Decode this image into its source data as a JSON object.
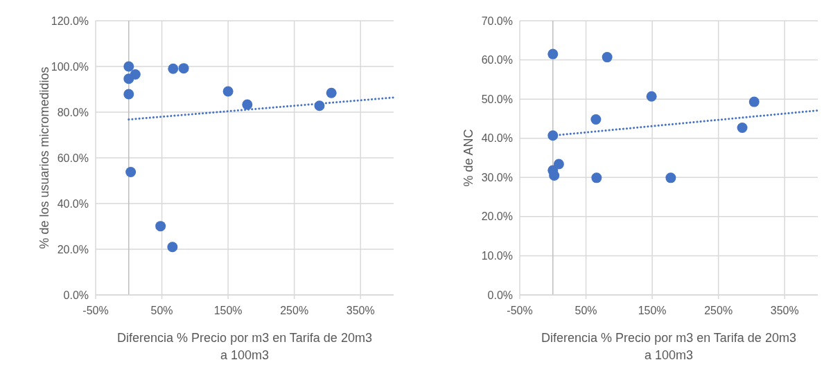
{
  "chart_data": [
    {
      "type": "scatter",
      "xlabel": "Diferencia % Precio por m3 en Tarifa de 20m3 a 100m3",
      "ylabel": "% de los usuarios micromedidios",
      "xlim": [
        -50,
        400
      ],
      "ylim": [
        0,
        120
      ],
      "xticks": [
        {
          "value": -50,
          "label": "-50%"
        },
        {
          "value": 50,
          "label": "50%"
        },
        {
          "value": 150,
          "label": "150%"
        },
        {
          "value": 250,
          "label": "250%"
        },
        {
          "value": 350,
          "label": "350%"
        }
      ],
      "yticks": [
        {
          "value": 0,
          "label": "0.0%"
        },
        {
          "value": 20,
          "label": "20.0%"
        },
        {
          "value": 40,
          "label": "40.0%"
        },
        {
          "value": 60,
          "label": "60.0%"
        },
        {
          "value": 80,
          "label": "80.0%"
        },
        {
          "value": 100,
          "label": "100.0%"
        },
        {
          "value": 120,
          "label": "120.0%"
        }
      ],
      "grid": true,
      "series": [
        {
          "color": "#4472c4",
          "marker": "circle",
          "x": [
            0,
            10,
            0,
            0,
            3,
            67,
            83,
            150,
            179,
            288,
            306,
            48,
            66
          ],
          "values": [
            100,
            96.5,
            94.6,
            87.9,
            53.8,
            99,
            99.2,
            89.1,
            83.3,
            82.8,
            88.4,
            30.1,
            21
          ]
        },
        {
          "type": "line",
          "color": "#4472c4",
          "marker": "none",
          "line_style": "dotted",
          "x": [
            0,
            400
          ],
          "values": [
            76.8,
            86.4
          ]
        }
      ]
    },
    {
      "type": "scatter",
      "xlabel": "Diferencia % Precio por m3 en Tarifa de 20m3 a 100m3",
      "ylabel": "% de ANC",
      "xlim": [
        -50,
        400
      ],
      "ylim": [
        0,
        70
      ],
      "xticks": [
        {
          "value": -50,
          "label": "-50%"
        },
        {
          "value": 50,
          "label": "50%"
        },
        {
          "value": 150,
          "label": "150%"
        },
        {
          "value": 250,
          "label": "250%"
        },
        {
          "value": 350,
          "label": "350%"
        }
      ],
      "yticks": [
        {
          "value": 0,
          "label": "0.0%"
        },
        {
          "value": 10,
          "label": "10.0%"
        },
        {
          "value": 20,
          "label": "20.0%"
        },
        {
          "value": 30,
          "label": "30.0%"
        },
        {
          "value": 40,
          "label": "40.0%"
        },
        {
          "value": 50,
          "label": "50.0%"
        },
        {
          "value": 60,
          "label": "60.0%"
        },
        {
          "value": 70,
          "label": "70.0%"
        }
      ],
      "grid": true,
      "series": [
        {
          "color": "#4472c4",
          "marker": "circle",
          "x": [
            0,
            82,
            149,
            304,
            65,
            0,
            286,
            9,
            0,
            2,
            66,
            178
          ],
          "values": [
            61.5,
            60.7,
            50.7,
            49.3,
            44.8,
            40.7,
            42.7,
            33.4,
            31.8,
            30.5,
            29.9,
            29.9
          ]
        },
        {
          "type": "line",
          "color": "#4472c4",
          "marker": "none",
          "line_style": "dotted",
          "x": [
            0,
            400
          ],
          "values": [
            40.7,
            47.1
          ]
        }
      ]
    }
  ]
}
